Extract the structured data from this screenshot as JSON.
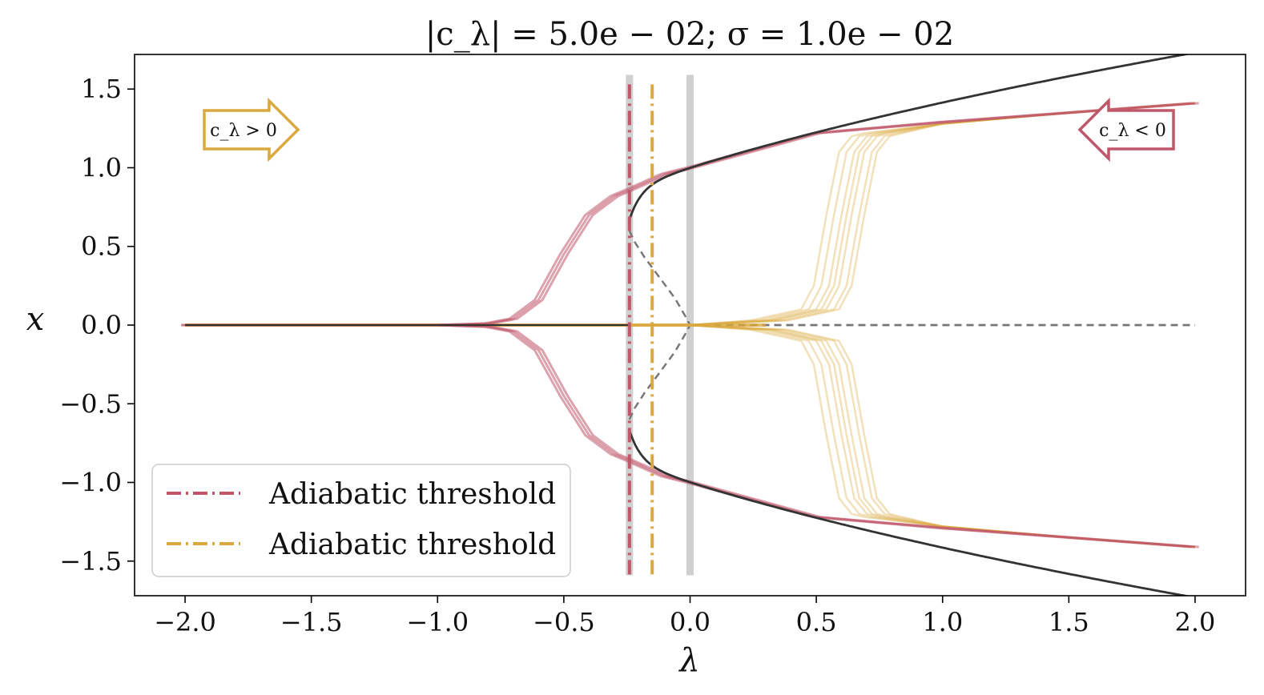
{
  "chart_data": {
    "type": "line",
    "title": "|c_λ| = 5.0e − 02; σ = 1.0e − 02",
    "xlabel": "λ",
    "ylabel": "x",
    "xlim": [
      -2.2,
      2.2
    ],
    "ylim": [
      -1.72,
      1.72
    ],
    "xticks": [
      -2.0,
      -1.5,
      -1.0,
      -0.5,
      0.0,
      0.5,
      1.0,
      1.5,
      2.0
    ],
    "xtick_labels": [
      "−2.0",
      "−1.5",
      "−1.0",
      "−0.5",
      "0.0",
      "0.5",
      "1.0",
      "1.5",
      "2.0"
    ],
    "yticks": [
      1.5,
      1.0,
      0.5,
      0.0,
      -0.5,
      -1.0,
      -1.5
    ],
    "ytick_labels": [
      "1.5",
      "1.0",
      "0.5",
      "0.0",
      "−0.5",
      "−1.0",
      "−1.5"
    ],
    "grid": false,
    "legend": {
      "placement": "lower-left",
      "entries": [
        {
          "label": "Adiabatic threshold",
          "color": "#c0566a",
          "style": "dash-dot"
        },
        {
          "label": "Adiabatic threshold",
          "color": "#dba83d",
          "style": "dash-dot"
        }
      ]
    },
    "annotations": [
      {
        "text": "c_λ > 0",
        "direction": "right",
        "color": "#dba83d",
        "position": "top-left"
      },
      {
        "text": "c_λ < 0",
        "direction": "left",
        "color": "#c0566a",
        "position": "top-right"
      }
    ],
    "vertical_lines": [
      {
        "x": -0.24,
        "color": "#c0566a",
        "style": "dash-dot",
        "role": "adiabatic threshold c_λ<0"
      },
      {
        "x": -0.15,
        "color": "#dba83d",
        "style": "dash-dot",
        "role": "adiabatic threshold c_λ>0"
      },
      {
        "x": -0.24,
        "color": "#d0d0d0",
        "style": "solid-thick"
      },
      {
        "x": 0.0,
        "color": "#d0d0d0",
        "style": "solid-thick"
      }
    ],
    "colors": {
      "negative_sweep": "#c0566a",
      "positive_sweep": "#dba83d",
      "equilibria": "#333333",
      "unstable": "#777777"
    },
    "series": [
      {
        "role": "stable upper branch",
        "style": "solid",
        "color": "#333333",
        "x": [
          -0.24,
          -0.23,
          -0.2,
          -0.15,
          -0.1,
          -0.05,
          0.0,
          0.1,
          0.25,
          0.5,
          0.75,
          1.0,
          1.25,
          1.5,
          1.75,
          2.0
        ],
        "y": [
          0.77,
          0.83,
          0.89,
          0.94,
          0.97,
          0.99,
          1.0,
          1.05,
          1.12,
          1.22,
          1.32,
          1.41,
          1.5,
          1.58,
          1.66,
          1.41
        ]
      },
      {
        "role": "unstable fold branch",
        "style": "dashed",
        "color": "#777777",
        "x": [
          -0.24,
          -0.22,
          -0.18,
          -0.12,
          -0.06,
          -0.02,
          0.0
        ],
        "y": [
          0.6,
          0.53,
          0.43,
          0.3,
          0.17,
          0.06,
          0.0
        ]
      },
      {
        "role": "unstable zero branch",
        "style": "dashed",
        "color": "#777777",
        "x": [
          0.0,
          2.0
        ],
        "y": [
          0.0,
          0.0
        ]
      },
      {
        "role": "c_λ < 0 trajectories (upper)",
        "style": "solid",
        "color": "#c0566a",
        "x": [
          -2.0,
          -1.0,
          -0.8,
          -0.7,
          -0.6,
          -0.5,
          -0.4,
          -0.3,
          -0.24,
          -0.1,
          0.0,
          0.5,
          1.0,
          1.5,
          2.0
        ],
        "y": [
          0.0,
          0.0,
          0.01,
          0.04,
          0.16,
          0.45,
          0.7,
          0.82,
          0.86,
          0.96,
          1.0,
          1.22,
          1.29,
          1.35,
          1.41
        ]
      },
      {
        "role": "c_λ > 0 trajectories (upper, typical)",
        "style": "solid",
        "color": "#dba83d",
        "x": [
          -2.0,
          0.0,
          0.3,
          0.5,
          0.55,
          0.6,
          0.65,
          0.7,
          0.75,
          1.0,
          1.5,
          2.0
        ],
        "y": [
          0.0,
          0.0,
          0.03,
          0.1,
          0.25,
          0.7,
          1.1,
          1.2,
          1.22,
          1.28,
          1.35,
          1.41
        ]
      }
    ]
  }
}
